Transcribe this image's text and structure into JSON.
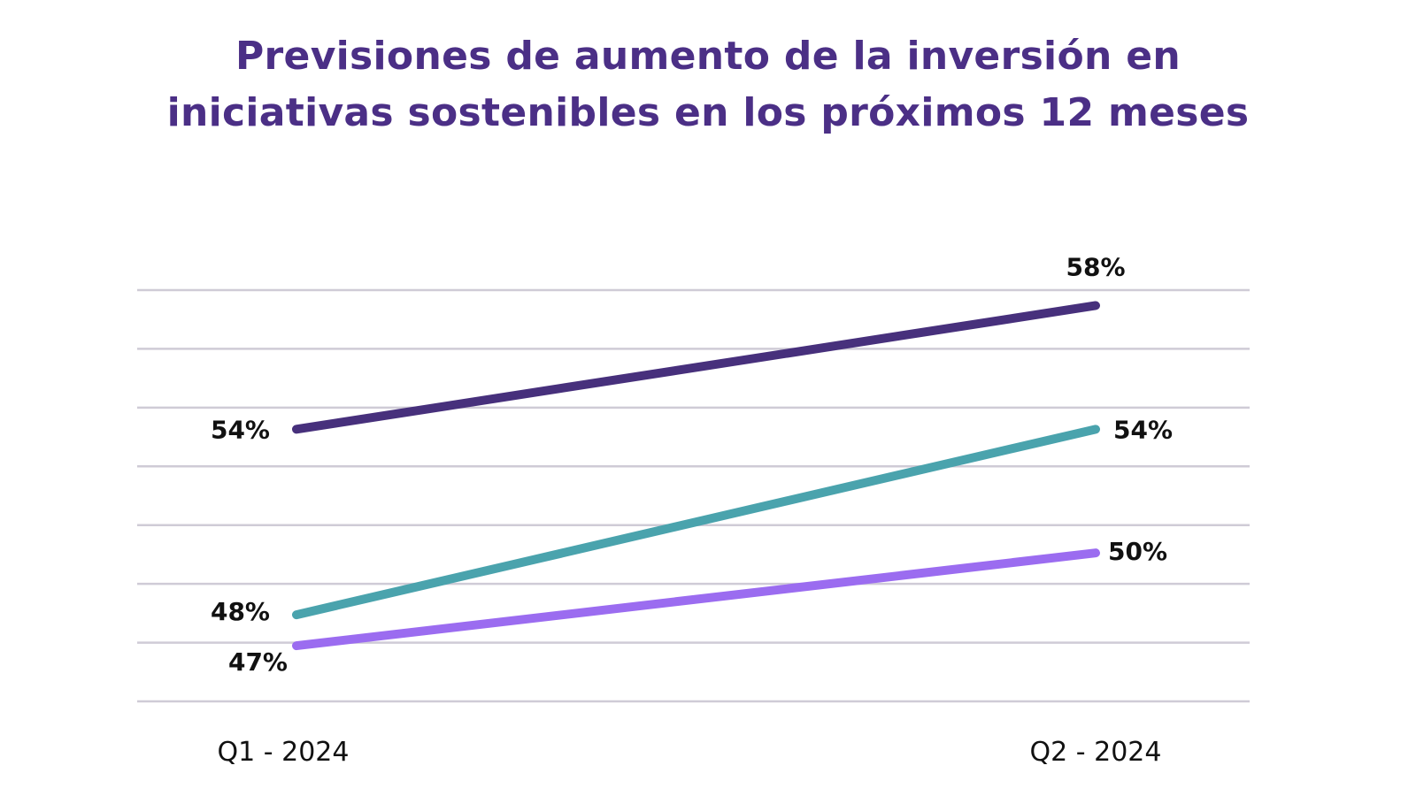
{
  "chart_data": {
    "type": "line",
    "title_lines": [
      "Previsiones de aumento de la inversión en",
      "iniciativas sostenibles en los próximos 12 meses"
    ],
    "categories": [
      "Q1 - 2024",
      "Q2 - 2024"
    ],
    "series": [
      {
        "values": [
          54,
          58
        ],
        "labels": [
          "54%",
          "58%"
        ],
        "color": "#47307c"
      },
      {
        "values": [
          48,
          54
        ],
        "labels": [
          "48%",
          "54%"
        ],
        "color": "#4aa3ad"
      },
      {
        "values": [
          47,
          50
        ],
        "labels": [
          "47%",
          "50%"
        ],
        "color": "#9b6cf0"
      }
    ],
    "xlabel": "",
    "ylabel": "",
    "ylim": [
      45.2,
      58.5
    ],
    "grid": true,
    "legend": "none",
    "title_color": "#4b2f86",
    "gridline_color": "#cfcbd6"
  }
}
